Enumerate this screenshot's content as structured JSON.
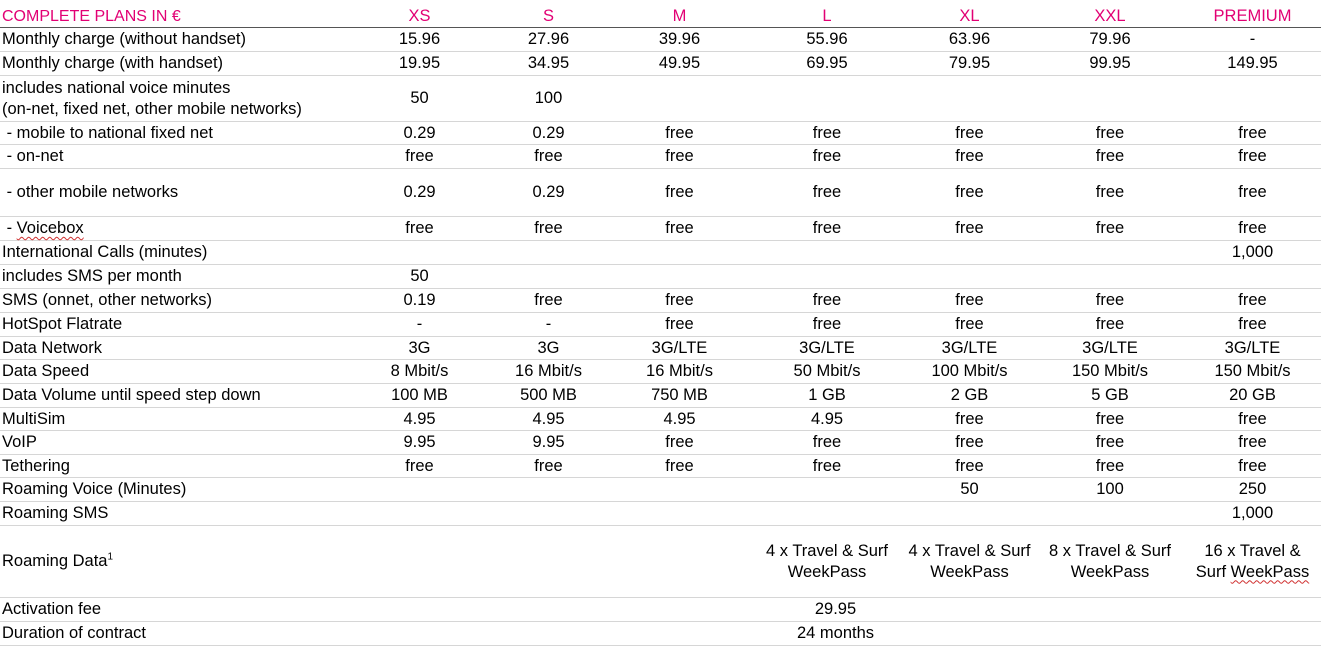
{
  "header": [
    "COMPLETE PLANS IN €",
    "XS",
    "S",
    "M",
    "L",
    "XL",
    "XXL",
    "PREMIUM"
  ],
  "rows": [
    {
      "label": "Monthly charge (without handset)",
      "values": [
        "15.96",
        "27.96",
        "39.96",
        "55.96",
        "63.96",
        "79.96",
        "-"
      ]
    },
    {
      "label": "Monthly charge (with handset)",
      "values": [
        "19.95",
        "34.95",
        "49.95",
        "69.95",
        "79.95",
        "99.95",
        "149.95"
      ]
    },
    {
      "label_line1": "includes national voice minutes",
      "label_line2": "(on-net, fixed net, other mobile networks)",
      "values": [
        "50",
        "100",
        "",
        "",
        "",
        "",
        ""
      ]
    },
    {
      "label": " - mobile to national fixed net",
      "values": [
        "0.29",
        "0.29",
        "free",
        "free",
        "free",
        "free",
        "free"
      ]
    },
    {
      "label": " - on-net",
      "values": [
        "free",
        "free",
        "free",
        "free",
        "free",
        "free",
        "free"
      ]
    },
    {
      "label": " - other mobile networks",
      "values": [
        "0.29",
        "0.29",
        "free",
        "free",
        "free",
        "free",
        "free"
      ]
    },
    {
      "label_prefix": " - ",
      "label_word": "Voicebox",
      "values": [
        "free",
        "free",
        "free",
        "free",
        "free",
        "free",
        "free"
      ]
    },
    {
      "label": "International Calls (minutes)",
      "values": [
        "",
        "",
        "",
        "",
        "",
        "",
        "1,000"
      ]
    },
    {
      "label": "includes SMS per month",
      "values": [
        "50",
        "",
        "",
        "",
        "",
        "",
        ""
      ]
    },
    {
      "label": "SMS (onnet, other networks)",
      "values": [
        "0.19",
        "free",
        "free",
        "free",
        "free",
        "free",
        "free"
      ]
    },
    {
      "label": "HotSpot Flatrate",
      "values": [
        "-",
        "-",
        "free",
        "free",
        "free",
        "free",
        "free"
      ]
    },
    {
      "label": "Data Network",
      "values": [
        "3G",
        "3G",
        "3G/LTE",
        "3G/LTE",
        "3G/LTE",
        "3G/LTE",
        "3G/LTE"
      ]
    },
    {
      "label": "Data Speed",
      "values": [
        "8 Mbit/s",
        "16 Mbit/s",
        "16 Mbit/s",
        "50 Mbit/s",
        "100 Mbit/s",
        "150 Mbit/s",
        "150 Mbit/s"
      ]
    },
    {
      "label": "Data Volume until speed step down",
      "values": [
        "100 MB",
        "500 MB",
        "750 MB",
        "1 GB",
        "2 GB",
        "5 GB",
        "20 GB"
      ]
    },
    {
      "label": "MultiSim",
      "values": [
        "4.95",
        "4.95",
        "4.95",
        "4.95",
        "free",
        "free",
        "free"
      ]
    },
    {
      "label": "VoIP",
      "values": [
        "9.95",
        "9.95",
        "free",
        "free",
        "free",
        "free",
        "free"
      ]
    },
    {
      "label": "Tethering",
      "values": [
        "free",
        "free",
        "free",
        "free",
        "free",
        "free",
        "free"
      ]
    },
    {
      "label": "Roaming Voice (Minutes)",
      "values": [
        "",
        "",
        "",
        "",
        "50",
        "100",
        "250"
      ]
    },
    {
      "label": "Roaming SMS",
      "values": [
        "",
        "",
        "",
        "",
        "",
        "",
        "1,000"
      ]
    },
    {
      "label": "Roaming Data",
      "label_sup": "1",
      "values": [
        "",
        "",
        "",
        {
          "l1": "4 x Travel & Surf",
          "l2": "WeekPass"
        },
        {
          "l1": "4 x Travel & Surf",
          "l2": "WeekPass"
        },
        {
          "l1": "8 x Travel & Surf",
          "l2": "WeekPass"
        },
        {
          "l1": "16 x Travel &",
          "l2a": "Surf ",
          "l2b": "WeekPass"
        }
      ]
    },
    {
      "label": "Activation fee",
      "span_value": "29.95"
    },
    {
      "label": "Duration of contract",
      "span_value": "24 months"
    }
  ],
  "colors": {
    "accent": "#e20074"
  }
}
